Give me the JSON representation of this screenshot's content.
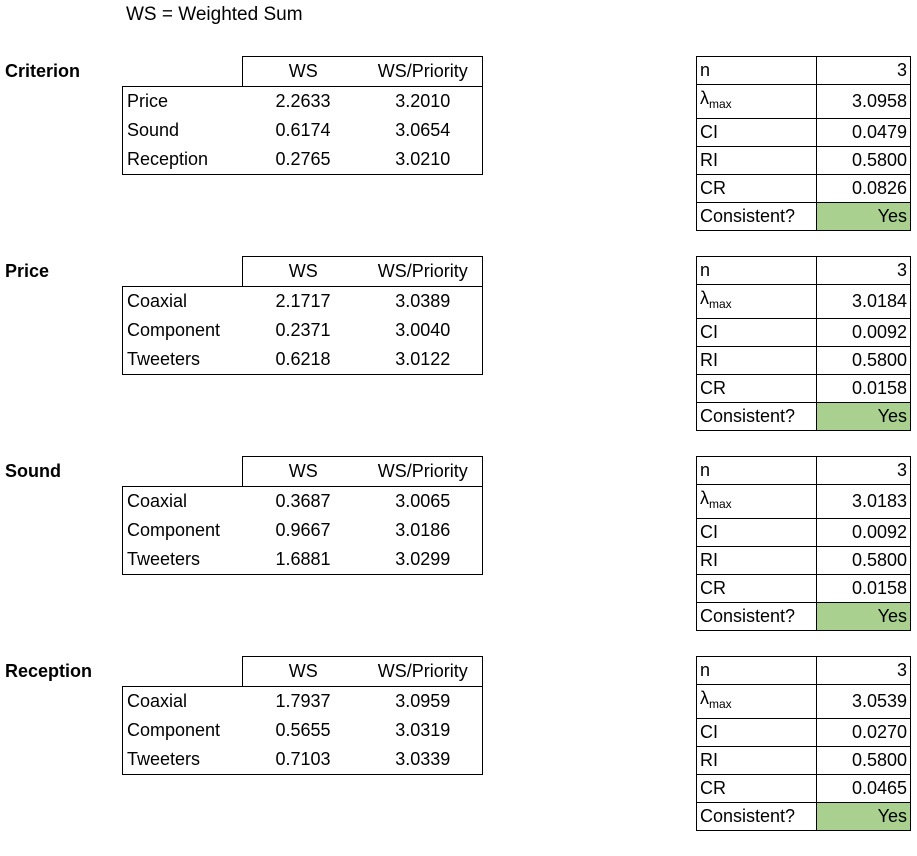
{
  "header_note": "WS = Weighted Sum",
  "sections": [
    {
      "title": "Criterion",
      "columns": [
        "WS",
        "WS/Priority"
      ],
      "rows": [
        {
          "label": "Price",
          "ws": "2.2633",
          "ratio": "3.2010"
        },
        {
          "label": "Sound",
          "ws": "0.6174",
          "ratio": "3.0654"
        },
        {
          "label": "Reception",
          "ws": "0.2765",
          "ratio": "3.0210"
        }
      ],
      "stats": {
        "n_label": "n",
        "n": "3",
        "lambda_symbol": "λ",
        "lambda_sub": "max",
        "lambda": "3.0958",
        "ci_label": "CI",
        "ci": "0.0479",
        "ri_label": "RI",
        "ri": "0.5800",
        "cr_label": "CR",
        "cr": "0.0826",
        "consistent_label": "Consistent?",
        "consistent": "Yes"
      }
    },
    {
      "title": "Price",
      "columns": [
        "WS",
        "WS/Priority"
      ],
      "rows": [
        {
          "label": "Coaxial",
          "ws": "2.1717",
          "ratio": "3.0389"
        },
        {
          "label": "Component",
          "ws": "0.2371",
          "ratio": "3.0040"
        },
        {
          "label": "Tweeters",
          "ws": "0.6218",
          "ratio": "3.0122"
        }
      ],
      "stats": {
        "n_label": "n",
        "n": "3",
        "lambda_symbol": "λ",
        "lambda_sub": "max",
        "lambda": "3.0184",
        "ci_label": "CI",
        "ci": "0.0092",
        "ri_label": "RI",
        "ri": "0.5800",
        "cr_label": "CR",
        "cr": "0.0158",
        "consistent_label": "Consistent?",
        "consistent": "Yes"
      }
    },
    {
      "title": "Sound",
      "columns": [
        "WS",
        "WS/Priority"
      ],
      "rows": [
        {
          "label": "Coaxial",
          "ws": "0.3687",
          "ratio": "3.0065"
        },
        {
          "label": "Component",
          "ws": "0.9667",
          "ratio": "3.0186"
        },
        {
          "label": "Tweeters",
          "ws": "1.6881",
          "ratio": "3.0299"
        }
      ],
      "stats": {
        "n_label": "n",
        "n": "3",
        "lambda_symbol": "λ",
        "lambda_sub": "max",
        "lambda": "3.0183",
        "ci_label": "CI",
        "ci": "0.0092",
        "ri_label": "RI",
        "ri": "0.5800",
        "cr_label": "CR",
        "cr": "0.0158",
        "consistent_label": "Consistent?",
        "consistent": "Yes"
      }
    },
    {
      "title": "Reception",
      "columns": [
        "WS",
        "WS/Priority"
      ],
      "rows": [
        {
          "label": "Coaxial",
          "ws": "1.7937",
          "ratio": "3.0959"
        },
        {
          "label": "Component",
          "ws": "0.5655",
          "ratio": "3.0319"
        },
        {
          "label": "Tweeters",
          "ws": "0.7103",
          "ratio": "3.0339"
        }
      ],
      "stats": {
        "n_label": "n",
        "n": "3",
        "lambda_symbol": "λ",
        "lambda_sub": "max",
        "lambda": "3.0539",
        "ci_label": "CI",
        "ci": "0.0270",
        "ri_label": "RI",
        "ri": "0.5800",
        "cr_label": "CR",
        "cr": "0.0465",
        "consistent_label": "Consistent?",
        "consistent": "Yes"
      }
    }
  ],
  "colors": {
    "consistent_fill": "#a9d08e"
  }
}
